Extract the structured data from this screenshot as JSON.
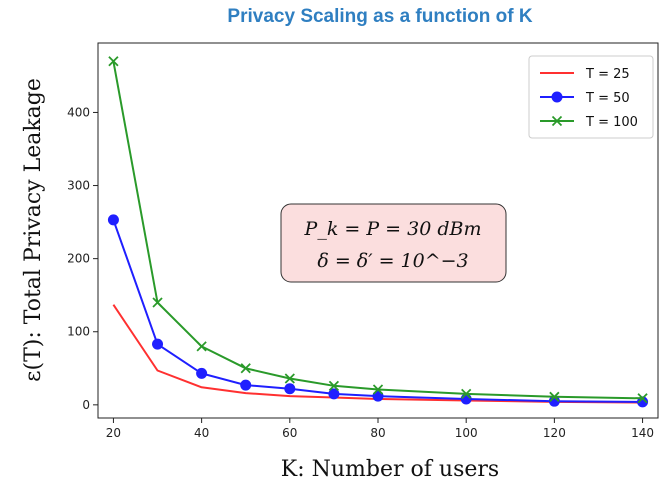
{
  "chart_data": {
    "type": "line",
    "title": "Privacy Scaling as a function of K",
    "xlabel": "K: Number of users",
    "ylabel": "ε(T): Total Privacy Leakage",
    "x": [
      20,
      30,
      40,
      50,
      60,
      70,
      80,
      100,
      120,
      140
    ],
    "xticks": [
      20,
      40,
      60,
      80,
      100,
      120,
      140
    ],
    "yticks": [
      0,
      100,
      200,
      300,
      400
    ],
    "xlim": [
      16.5,
      143.5
    ],
    "ylim": [
      -18,
      495
    ],
    "legend_position": "top-right",
    "series": [
      {
        "name": "T = 25",
        "color": "#ff3030",
        "marker": "none",
        "values": [
          137,
          47,
          24,
          16,
          12,
          10,
          8,
          6,
          4,
          3
        ]
      },
      {
        "name": "T = 50",
        "color": "#1f1fff",
        "marker": "circle",
        "values": [
          253,
          83,
          43,
          27,
          22,
          15,
          12,
          8,
          5,
          4
        ]
      },
      {
        "name": "T = 100",
        "color": "#2a9a2a",
        "marker": "x",
        "values": [
          470,
          140,
          80,
          50,
          36,
          26,
          21,
          15,
          11,
          9
        ]
      }
    ],
    "annotation": {
      "line1": "P_k = P = 30 dBm",
      "line2": "δ = δ′ = 10^−3",
      "box_fill": "#fbdede",
      "box_stroke": "#333333"
    }
  }
}
